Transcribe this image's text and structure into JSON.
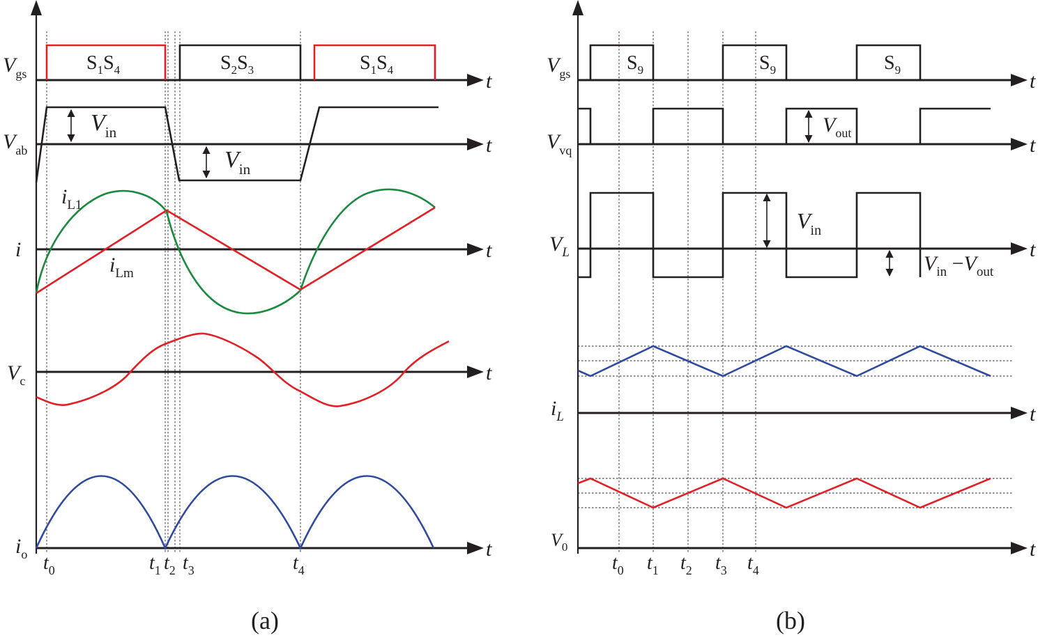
{
  "colors": {
    "ink": "#231f20",
    "red": "#e31e24",
    "green": "#1a8a3f",
    "blue": "#2e4a9e"
  },
  "panel_a": {
    "caption": "(a)",
    "rows": [
      {
        "symbol": "V",
        "sub": "gs"
      },
      {
        "symbol": "V",
        "sub": "ab"
      },
      {
        "symbol": "i",
        "sub": ""
      },
      {
        "symbol": "V",
        "sub": "c"
      },
      {
        "symbol": "i",
        "sub": "o"
      }
    ],
    "axis_label": "t",
    "pulses": [
      {
        "label": "S",
        "sub1": "1",
        "mid": "S",
        "sub2": "4"
      },
      {
        "label": "S",
        "sub1": "2",
        "mid": "S",
        "sub2": "3"
      },
      {
        "label": "S",
        "sub1": "1",
        "mid": "S",
        "sub2": "4"
      }
    ],
    "vin_label": {
      "symbol": "V",
      "sub": "in"
    },
    "curve_labels": {
      "iL1": {
        "symbol": "i",
        "sub": "L1"
      },
      "iLm": {
        "symbol": "i",
        "sub": "Lm"
      }
    },
    "time_marks": [
      {
        "symbol": "t",
        "sub": "0"
      },
      {
        "symbol": "t",
        "sub": "1"
      },
      {
        "symbol": "t",
        "sub": "2"
      },
      {
        "symbol": "t",
        "sub": "3"
      },
      {
        "symbol": "t",
        "sub": "4"
      }
    ]
  },
  "panel_b": {
    "caption": "(b)",
    "rows": [
      {
        "symbol": "V",
        "sub": "gs"
      },
      {
        "symbol": "V",
        "sub": "vq"
      },
      {
        "symbol": "V",
        "sub": "L"
      },
      {
        "symbol": "i",
        "sub": "L"
      },
      {
        "symbol": "V",
        "sub": "0"
      }
    ],
    "axis_label": "t",
    "pulse_label": {
      "label": "S",
      "sub": "9"
    },
    "vout_label": {
      "symbol": "V",
      "sub": "out"
    },
    "vin_label": {
      "symbol": "V",
      "sub": "in"
    },
    "diff_label": {
      "a": "V",
      "a_sub": "in",
      "op": " −",
      "b": "V",
      "b_sub": "out"
    },
    "time_marks": [
      {
        "symbol": "t",
        "sub": "0"
      },
      {
        "symbol": "t",
        "sub": "1"
      },
      {
        "symbol": "t",
        "sub": "2"
      },
      {
        "symbol": "t",
        "sub": "3"
      },
      {
        "symbol": "t",
        "sub": "4"
      }
    ]
  }
}
